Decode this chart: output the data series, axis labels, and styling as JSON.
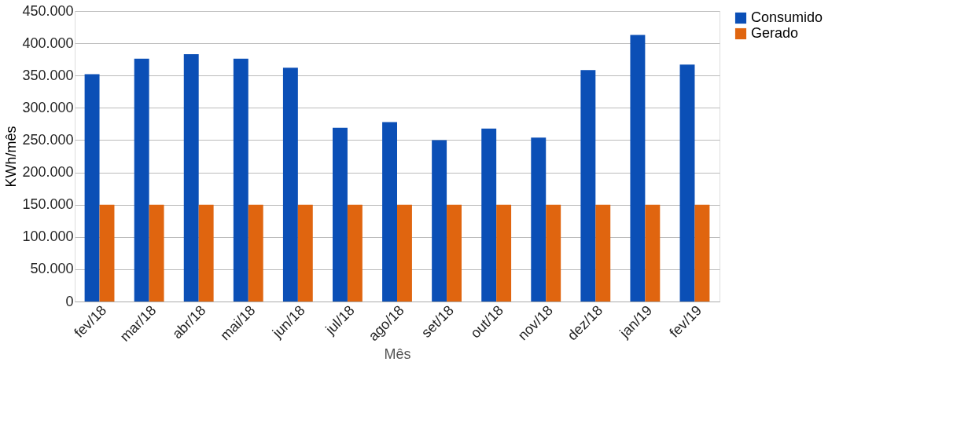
{
  "chart_data": {
    "type": "bar",
    "xlabel": "Mês",
    "ylabel": "KWh/mês",
    "categories": [
      "fev/18",
      "mar/18",
      "abr/18",
      "mai/18",
      "jun/18",
      "jul/18",
      "ago/18",
      "set/18",
      "out/18",
      "nov/18",
      "dez/18",
      "jan/19",
      "fev/19"
    ],
    "series": [
      {
        "name": "Consumido",
        "color": "#0b4fb6",
        "values": [
          352000,
          376000,
          383000,
          376000,
          362000,
          269000,
          278000,
          250000,
          268000,
          254000,
          358500,
          413000,
          367000
        ]
      },
      {
        "name": "Gerado",
        "color": "#e0650f",
        "values": [
          150000,
          150000,
          150000,
          150000,
          150000,
          150000,
          150000,
          150000,
          150000,
          150000,
          150000,
          150000,
          150000
        ]
      }
    ],
    "ylim": [
      0,
      450000
    ],
    "yticks": [
      0,
      {
        "value": 50000,
        "label": "50.000"
      },
      {
        "value": 100000,
        "label": "100.000"
      },
      {
        "value": 150000,
        "label": "150.000"
      },
      {
        "value": 200000,
        "label": "200.000"
      },
      {
        "value": 250000,
        "label": "250.000"
      },
      {
        "value": 300000,
        "label": "300.000"
      },
      {
        "value": 350000,
        "label": "350.000"
      },
      {
        "value": 400000,
        "label": "400.000"
      },
      {
        "value": 450000,
        "label": "450.000"
      }
    ],
    "grid": "y",
    "legend": "right"
  }
}
